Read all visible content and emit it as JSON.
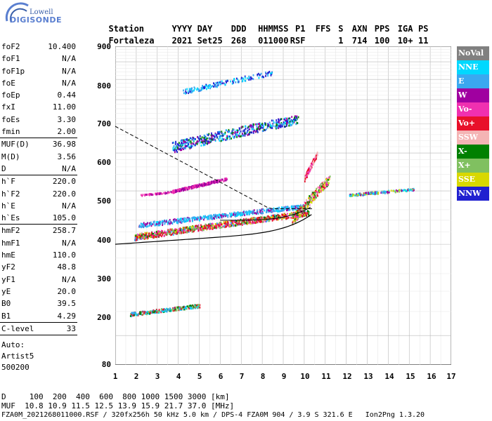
{
  "logo": {
    "line1": "Lowell",
    "line2": "DIGISONDE"
  },
  "header": {
    "labels": [
      "Station",
      "YYYY DAY",
      "DDD",
      "HHMMSS",
      "P1",
      "FFS",
      "S",
      "AXN",
      "PPS",
      "IGA",
      "PS"
    ],
    "values": [
      "Fortaleza",
      "2021 Set25",
      "268",
      "011000",
      "RSF",
      "",
      "1",
      "714",
      "100",
      "10+",
      "11"
    ]
  },
  "parameters": {
    "group1": [
      {
        "label": "foF2",
        "value": "10.400"
      },
      {
        "label": "foF1",
        "value": "N/A"
      },
      {
        "label": "foF1p",
        "value": "N/A"
      },
      {
        "label": "foE",
        "value": "N/A"
      },
      {
        "label": "foEp",
        "value": "0.44"
      },
      {
        "label": "fxI",
        "value": "11.00"
      },
      {
        "label": "foEs",
        "value": "3.30"
      },
      {
        "label": "fmin",
        "value": "2.00"
      }
    ],
    "group2": [
      {
        "label": "MUF(D)",
        "value": "36.98"
      },
      {
        "label": "M(D)",
        "value": "3.56"
      },
      {
        "label": "D",
        "value": "N/A"
      }
    ],
    "group3": [
      {
        "label": "h`F",
        "value": "220.0"
      },
      {
        "label": "h`F2",
        "value": "220.0"
      },
      {
        "label": "h`E",
        "value": "N/A"
      },
      {
        "label": "h`Es",
        "value": "105.0"
      }
    ],
    "group4": [
      {
        "label": "hmF2",
        "value": "258.7"
      },
      {
        "label": "hmF1",
        "value": "N/A"
      },
      {
        "label": "hmE",
        "value": "110.0"
      },
      {
        "label": "yF2",
        "value": "48.8"
      },
      {
        "label": "yF1",
        "value": "N/A"
      },
      {
        "label": "yE",
        "value": "20.0"
      },
      {
        "label": "B0",
        "value": "39.5"
      },
      {
        "label": "B1",
        "value": "4.29"
      }
    ],
    "group5": [
      {
        "label": "C-level",
        "value": "33"
      }
    ]
  },
  "autoscaling": {
    "line1": "Auto:",
    "line2": "Artist5",
    "line3": "500200"
  },
  "chart_data": {
    "type": "scatter",
    "xlim": [
      1,
      17
    ],
    "ylim": [
      80,
      900
    ],
    "y_scale": "log",
    "xticks": [
      "1",
      "2",
      "3",
      "4",
      "5",
      "6",
      "7",
      "8",
      "9",
      "10",
      "11",
      "12",
      "13",
      "14",
      "15",
      "16",
      "17"
    ],
    "yticks": [
      "80",
      "200",
      "300",
      "400",
      "500",
      "600",
      "700",
      "800",
      "900"
    ],
    "grid": true,
    "legend_position": "right"
  },
  "legend": [
    {
      "label": "NoVal",
      "color": "#808080"
    },
    {
      "label": "NNE",
      "color": "#00d8ff"
    },
    {
      "label": "E",
      "color": "#3aa8f0"
    },
    {
      "label": "W",
      "color": "#a000a0"
    },
    {
      "label": "Vo-",
      "color": "#f030b0"
    },
    {
      "label": "Vo+",
      "color": "#e8102a"
    },
    {
      "label": "SSW",
      "color": "#f4b4b4"
    },
    {
      "label": "X-",
      "color": "#008000"
    },
    {
      "label": "X+",
      "color": "#80c060"
    },
    {
      "label": "SSE",
      "color": "#d8d800"
    },
    {
      "label": "NNW",
      "color": "#2020d0"
    }
  ],
  "footer": {
    "d_line": "D     100  200  400  600  800 1000 1500 3000 [km]",
    "muf_line": "MUF  10.8 10.9 11.5 12.5 13.9 15.9 21.7 37.0 [MHz]",
    "file_line": "FZA0M_2021268011000.RSF / 320fx256h 50 kHz 5.0 km / DPS-4 FZA0M 904 / 3.9 S 321.6 E   Ion2Png 1.3.20"
  }
}
